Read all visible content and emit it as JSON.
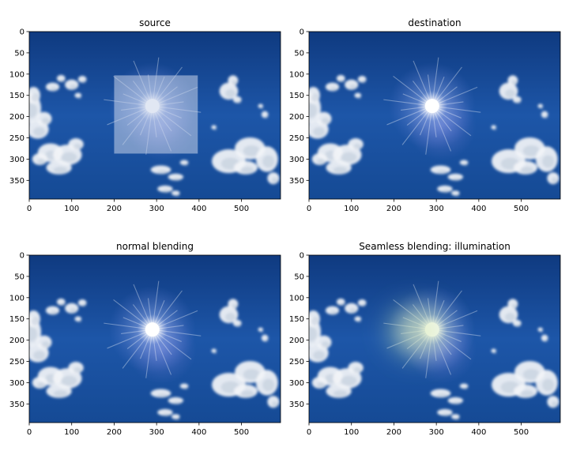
{
  "chart_data": [
    {
      "type": "image",
      "title": "source",
      "xticks": [
        0,
        100,
        200,
        300,
        400,
        500
      ],
      "yticks": [
        0,
        50,
        100,
        150,
        200,
        250,
        300,
        350
      ],
      "xlim": [
        0,
        592
      ],
      "ylim": [
        394,
        0
      ],
      "sun": [
        290,
        175
      ],
      "overlay_patch": {
        "x0": 200,
        "y0": 103,
        "x1": 397,
        "y1": 287
      },
      "glow": "none"
    },
    {
      "type": "image",
      "title": "destination",
      "xticks": [
        0,
        100,
        200,
        300,
        400,
        500
      ],
      "yticks": [
        0,
        50,
        100,
        150,
        200,
        250,
        300,
        350
      ],
      "xlim": [
        0,
        592
      ],
      "ylim": [
        394,
        0
      ],
      "sun": [
        290,
        175
      ],
      "overlay_patch": null,
      "glow": "none"
    },
    {
      "type": "image",
      "title": "normal blending",
      "xticks": [
        0,
        100,
        200,
        300,
        400,
        500
      ],
      "yticks": [
        0,
        50,
        100,
        150,
        200,
        250,
        300,
        350
      ],
      "xlim": [
        0,
        592
      ],
      "ylim": [
        394,
        0
      ],
      "sun": [
        290,
        175
      ],
      "overlay_patch": null,
      "glow": "none"
    },
    {
      "type": "image",
      "title": "Seamless blending: illumination",
      "xticks": [
        0,
        100,
        200,
        300,
        400,
        500
      ],
      "yticks": [
        0,
        50,
        100,
        150,
        200,
        250,
        300,
        350
      ],
      "xlim": [
        0,
        592
      ],
      "ylim": [
        394,
        0
      ],
      "sun": [
        290,
        175
      ],
      "overlay_patch": null,
      "glow": "illumination"
    }
  ],
  "colors": {
    "sky_top": "#0f3a80",
    "sky_mid": "#1d56a8",
    "sky_bottom": "#154a95",
    "cloud": "#f2f4f8",
    "patch": "#c8d4ea",
    "glow": "#d8ecb0"
  }
}
